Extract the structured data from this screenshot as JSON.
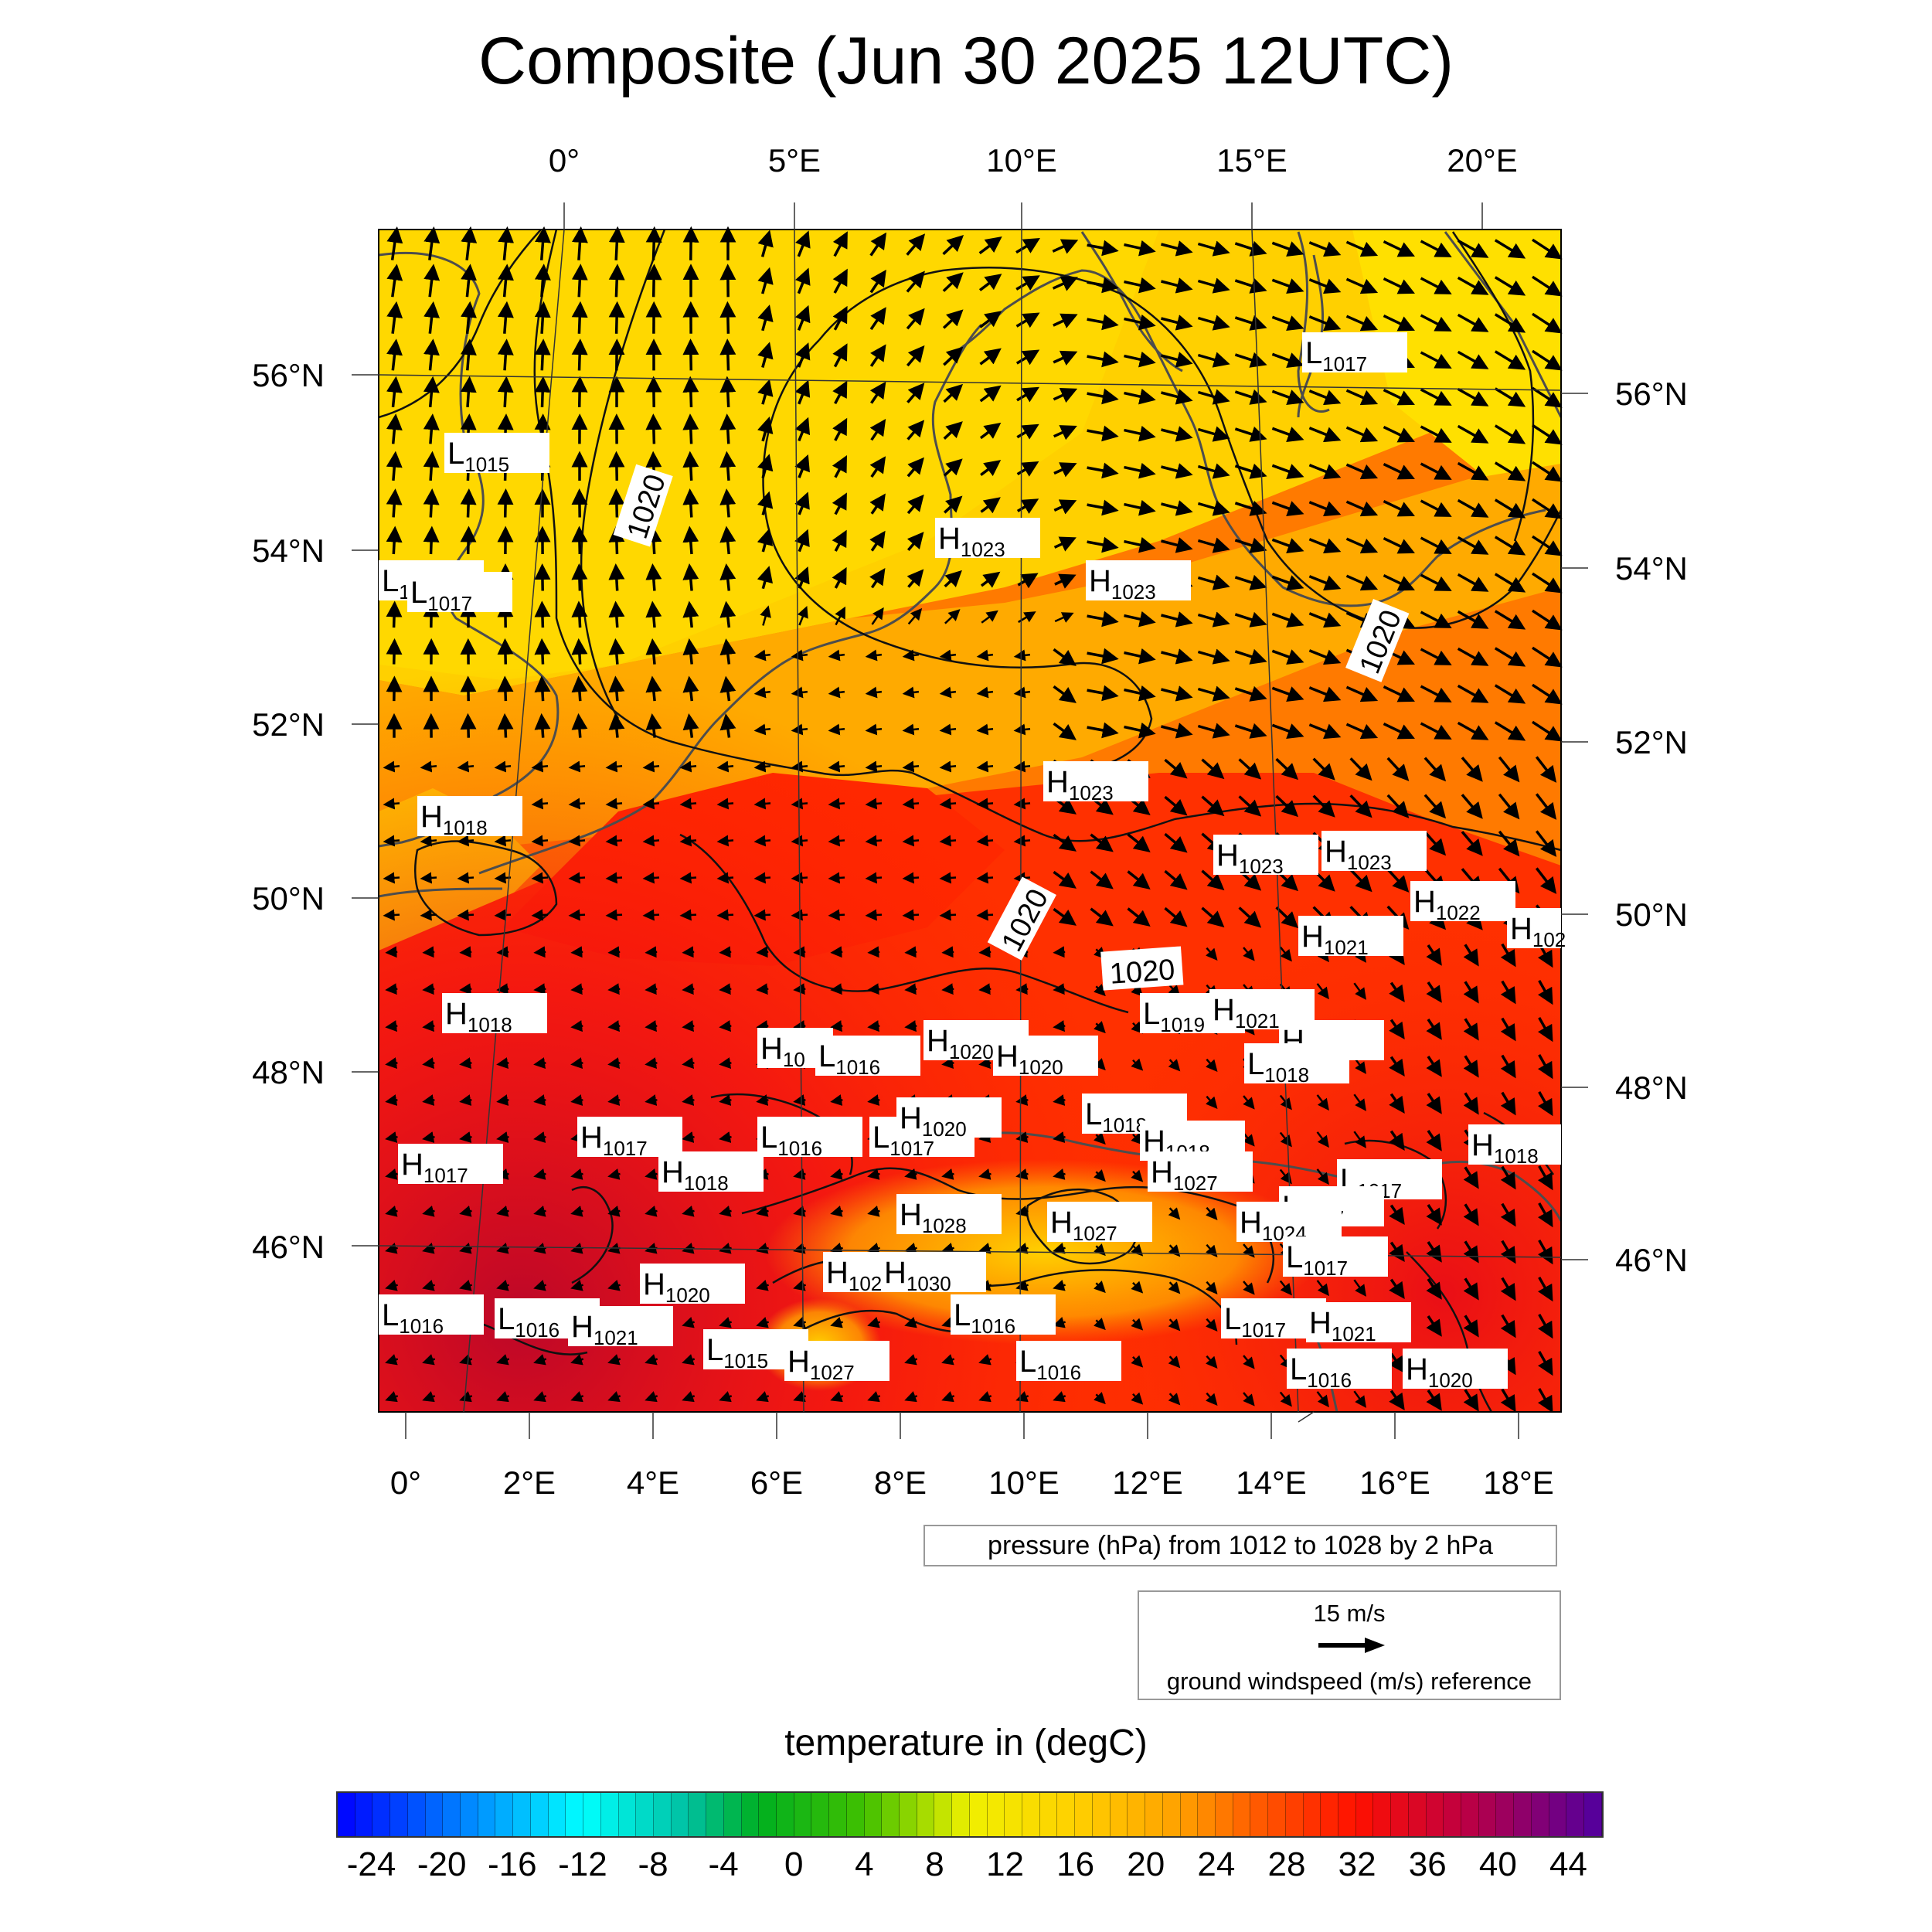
{
  "title": "Composite (Jun 30 2025 12UTC)",
  "top_lon_labels": [
    "0°",
    "5°E",
    "10°E",
    "15°E",
    "20°E"
  ],
  "bottom_lon_labels": [
    "0°",
    "2°E",
    "4°E",
    "6°E",
    "8°E",
    "10°E",
    "12°E",
    "14°E",
    "16°E",
    "18°E"
  ],
  "left_lat_labels": [
    "56°N",
    "54°N",
    "52°N",
    "50°N",
    "48°N",
    "46°N"
  ],
  "right_lat_labels": [
    "56°N",
    "54°N",
    "52°N",
    "50°N",
    "48°N",
    "46°N"
  ],
  "isobar_labels": [
    "1020",
    "1020",
    "1020",
    "1020"
  ],
  "pressure_centers": [
    {
      "type": "L",
      "value": "1015"
    },
    {
      "type": "L",
      "value": "1016"
    },
    {
      "type": "L",
      "value": "1017"
    },
    {
      "type": "H",
      "value": "1018"
    },
    {
      "type": "H",
      "value": "1018"
    },
    {
      "type": "H",
      "value": "1017"
    },
    {
      "type": "H",
      "value": "1017"
    },
    {
      "type": "L",
      "value": "1016"
    },
    {
      "type": "H",
      "value": "1018"
    },
    {
      "type": "L",
      "value": "1016"
    },
    {
      "type": "L",
      "value": "1016"
    },
    {
      "type": "H",
      "value": "1021"
    },
    {
      "type": "H",
      "value": "1020"
    },
    {
      "type": "L",
      "value": "1015"
    },
    {
      "type": "H",
      "value": "1027"
    },
    {
      "type": "H",
      "value": "10"
    },
    {
      "type": "L",
      "value": "1016"
    },
    {
      "type": "L",
      "value": "1016"
    },
    {
      "type": "L",
      "value": "1017"
    },
    {
      "type": "H",
      "value": "1020"
    },
    {
      "type": "H",
      "value": "1020"
    },
    {
      "type": "H",
      "value": "1020"
    },
    {
      "type": "H",
      "value": "1028"
    },
    {
      "type": "H",
      "value": "102"
    },
    {
      "type": "H",
      "value": "1030"
    },
    {
      "type": "L",
      "value": "1016"
    },
    {
      "type": "L",
      "value": "1016"
    },
    {
      "type": "H",
      "value": "1023"
    },
    {
      "type": "H",
      "value": "1023"
    },
    {
      "type": "H",
      "value": "1023"
    },
    {
      "type": "L",
      "value": "1018"
    },
    {
      "type": "H",
      "value": "1018"
    },
    {
      "type": "H",
      "value": "1027"
    },
    {
      "type": "H",
      "value": "1027"
    },
    {
      "type": "L",
      "value": "1019"
    },
    {
      "type": "H",
      "value": "1021"
    },
    {
      "type": "H",
      "value": "1023"
    },
    {
      "type": "H",
      "value": "1023"
    },
    {
      "type": "H",
      "value": "1021"
    },
    {
      "type": "H",
      "value": "1021"
    },
    {
      "type": "L",
      "value": "1018"
    },
    {
      "type": "L",
      "value": "1017"
    },
    {
      "type": "L",
      "value": "1017"
    },
    {
      "type": "H",
      "value": "1024"
    },
    {
      "type": "L",
      "value": "1017"
    },
    {
      "type": "L",
      "value": "1017"
    },
    {
      "type": "H",
      "value": "1021"
    },
    {
      "type": "L",
      "value": "1016"
    },
    {
      "type": "H",
      "value": "1022"
    },
    {
      "type": "H",
      "value": "102"
    },
    {
      "type": "H",
      "value": "1018"
    },
    {
      "type": "H",
      "value": "1020"
    },
    {
      "type": "L",
      "value": "1017"
    }
  ],
  "pressure_legend": "pressure (hPa) from 1012 to 1028 by 2 hPa",
  "wind_reference": {
    "speed_label": "15 m/s",
    "caption": "ground windspeed (m/s) reference"
  },
  "colorbar": {
    "title": "temperature in (degC)",
    "tick_labels": [
      "-24",
      "-20",
      "-16",
      "-12",
      "-8",
      "-4",
      "0",
      "4",
      "8",
      "12",
      "16",
      "20",
      "24",
      "28",
      "32",
      "36",
      "40",
      "44"
    ],
    "min": -26,
    "max": 46,
    "colors": [
      "#0000ff",
      "#00ffff",
      "#00c0a0",
      "#00b020",
      "#40c000",
      "#f0f000",
      "#ffd000",
      "#ffa000",
      "#ff6000",
      "#ff1000",
      "#c00040",
      "#5000a0"
    ],
    "color_stops": [
      -26,
      -12,
      -6,
      -2,
      4,
      10,
      16,
      22,
      26,
      32,
      38,
      46
    ]
  },
  "colors": {
    "warm_yellow": "#ffd400",
    "orange": "#ffa000",
    "hot_red": "#ff2a00",
    "deep_red": "#c0002a"
  }
}
